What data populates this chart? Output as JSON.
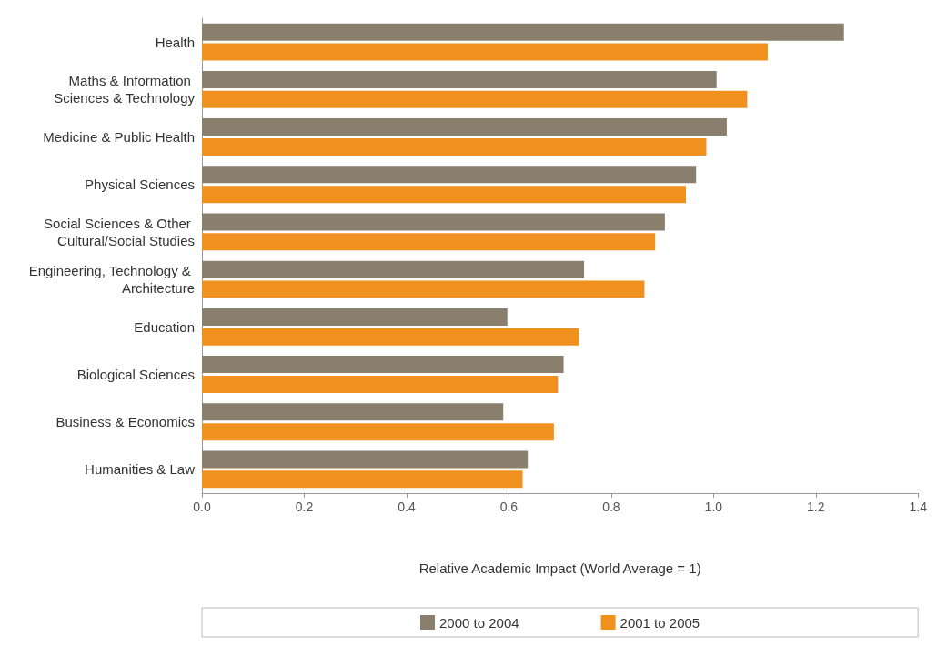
{
  "chart_data": {
    "type": "bar",
    "orientation": "horizontal",
    "xlabel": "Relative Academic Impact (World Average = 1)",
    "categories": [
      "Health",
      "Maths & Information Sciences & Technology",
      "Medicine & Public Health",
      "Physical Sciences",
      "Social Sciences & Other Cultural/Social Studies",
      "Engineering, Technology & Architecture",
      "Education",
      "Biological Sciences",
      "Business & Economics",
      "Humanities & Law"
    ],
    "series": [
      {
        "name": "2000 to 2004",
        "color": "#8a7f6c",
        "values": [
          1.255,
          1.006,
          1.026,
          0.966,
          0.905,
          0.747,
          0.597,
          0.707,
          0.589,
          0.637
        ]
      },
      {
        "name": "2001 to 2005",
        "color": "#f0901e",
        "values": [
          1.106,
          1.066,
          0.986,
          0.946,
          0.886,
          0.865,
          0.737,
          0.696,
          0.688,
          0.627
        ]
      }
    ],
    "xlim": [
      0,
      1.4
    ],
    "xticks": [
      {
        "value": 0,
        "label": "0.0"
      },
      {
        "value": 0.2,
        "label": "0.2"
      },
      {
        "value": 0.4,
        "label": "0.4"
      },
      {
        "value": 0.6,
        "label": "0.6"
      },
      {
        "value": 0.8,
        "label": "0.8"
      },
      {
        "value": 1,
        "label": "1.0"
      },
      {
        "value": 1.2,
        "label": "1.2"
      },
      {
        "value": 1.4,
        "label": "1.4"
      }
    ],
    "grid": false,
    "legend": "bottom"
  }
}
